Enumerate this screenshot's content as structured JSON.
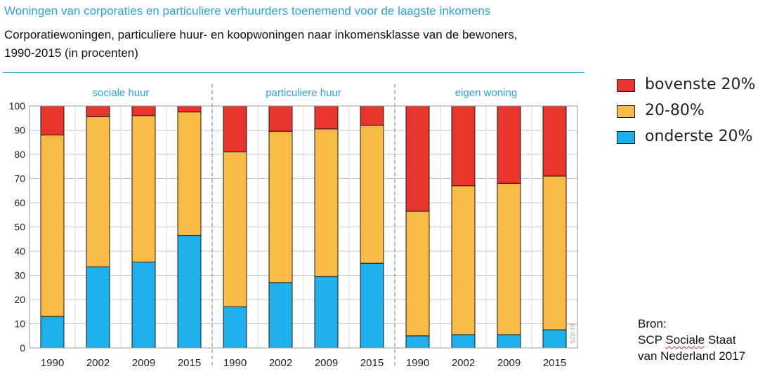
{
  "title": "Woningen van corporaties en particuliere verhuurders toenemend voor de laagste inkomens",
  "subtitle_line1": "Corporatiewoningen, particuliere huur- en koopwoningen naar inkomensklasse van de bewoners,",
  "subtitle_line2": "1990-2015 (in procenten)",
  "watermark": "scp.nl",
  "source": {
    "line1": "Bron:",
    "line2_a": "SCP ",
    "line2_b": "Sociale",
    "line2_c": " Staat",
    "line3": "van Nederland 2017"
  },
  "colors": {
    "bovenste": "#e8352e",
    "midden": "#f8bb45",
    "onderste": "#1eb0ea",
    "accent": "#2aa3d8"
  },
  "chart_data": {
    "type": "bar",
    "stacked": true,
    "ylim": [
      0,
      100
    ],
    "yticks": [
      0,
      10,
      20,
      30,
      40,
      50,
      60,
      70,
      80,
      90,
      100
    ],
    "grid": true,
    "legend_position": "right",
    "groups": [
      {
        "label": "sociale huur",
        "categories": [
          "1990",
          "2002",
          "2009",
          "2015"
        ]
      },
      {
        "label": "particuliere huur",
        "categories": [
          "1990",
          "2002",
          "2009",
          "2015"
        ]
      },
      {
        "label": "eigen woning",
        "categories": [
          "1990",
          "2002",
          "2009",
          "2015"
        ]
      }
    ],
    "series": [
      {
        "name": "onderste 20%",
        "color": "#1eb0ea",
        "values": [
          13,
          33.5,
          35.5,
          46.5,
          17,
          27,
          29.5,
          35,
          5,
          5.5,
          5.5,
          7.5
        ]
      },
      {
        "name": "20-80%",
        "color": "#f8bb45",
        "values": [
          75,
          62,
          60.5,
          51,
          64,
          62.5,
          61,
          57,
          51.5,
          61.5,
          62.5,
          63.5
        ]
      },
      {
        "name": "bovenste 20%",
        "color": "#e8352e",
        "values": [
          12,
          4.5,
          4,
          2.5,
          19,
          10.5,
          9.5,
          8,
          43.5,
          33,
          32,
          29
        ]
      }
    ],
    "legend_order": [
      "bovenste 20%",
      "20-80%",
      "onderste 20%"
    ]
  }
}
